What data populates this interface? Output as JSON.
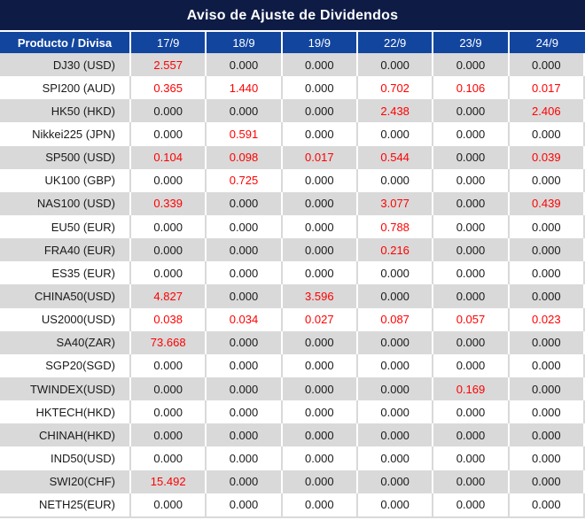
{
  "chart_data": {
    "type": "table",
    "title": "Aviso de Ajuste de Dividendos",
    "columns": [
      "Producto / Divisa",
      "17/9",
      "18/9",
      "19/9",
      "22/9",
      "23/9",
      "24/9"
    ],
    "highlight_rule": "non-zero adjustment values rendered in red",
    "rows": [
      {
        "product": "DJ30 (USD)",
        "values": [
          "2.557",
          "0.000",
          "0.000",
          "0.000",
          "0.000",
          "0.000"
        ]
      },
      {
        "product": "SPI200 (AUD)",
        "values": [
          "0.365",
          "1.440",
          "0.000",
          "0.702",
          "0.106",
          "0.017"
        ]
      },
      {
        "product": "HK50 (HKD)",
        "values": [
          "0.000",
          "0.000",
          "0.000",
          "2.438",
          "0.000",
          "2.406"
        ]
      },
      {
        "product": "Nikkei225 (JPN)",
        "values": [
          "0.000",
          "0.591",
          "0.000",
          "0.000",
          "0.000",
          "0.000"
        ]
      },
      {
        "product": "SP500 (USD)",
        "values": [
          "0.104",
          "0.098",
          "0.017",
          "0.544",
          "0.000",
          "0.039"
        ]
      },
      {
        "product": "UK100 (GBP)",
        "values": [
          "0.000",
          "0.725",
          "0.000",
          "0.000",
          "0.000",
          "0.000"
        ]
      },
      {
        "product": "NAS100 (USD)",
        "values": [
          "0.339",
          "0.000",
          "0.000",
          "3.077",
          "0.000",
          "0.439"
        ]
      },
      {
        "product": "EU50 (EUR)",
        "values": [
          "0.000",
          "0.000",
          "0.000",
          "0.788",
          "0.000",
          "0.000"
        ]
      },
      {
        "product": "FRA40 (EUR)",
        "values": [
          "0.000",
          "0.000",
          "0.000",
          "0.216",
          "0.000",
          "0.000"
        ]
      },
      {
        "product": "ES35 (EUR)",
        "values": [
          "0.000",
          "0.000",
          "0.000",
          "0.000",
          "0.000",
          "0.000"
        ]
      },
      {
        "product": "CHINA50(USD)",
        "values": [
          "4.827",
          "0.000",
          "3.596",
          "0.000",
          "0.000",
          "0.000"
        ]
      },
      {
        "product": "US2000(USD)",
        "values": [
          "0.038",
          "0.034",
          "0.027",
          "0.087",
          "0.057",
          "0.023"
        ]
      },
      {
        "product": "SA40(ZAR)",
        "values": [
          "73.668",
          "0.000",
          "0.000",
          "0.000",
          "0.000",
          "0.000"
        ]
      },
      {
        "product": "SGP20(SGD)",
        "values": [
          "0.000",
          "0.000",
          "0.000",
          "0.000",
          "0.000",
          "0.000"
        ]
      },
      {
        "product": "TWINDEX(USD)",
        "values": [
          "0.000",
          "0.000",
          "0.000",
          "0.000",
          "0.169",
          "0.000"
        ]
      },
      {
        "product": "HKTECH(HKD)",
        "values": [
          "0.000",
          "0.000",
          "0.000",
          "0.000",
          "0.000",
          "0.000"
        ]
      },
      {
        "product": "CHINAH(HKD)",
        "values": [
          "0.000",
          "0.000",
          "0.000",
          "0.000",
          "0.000",
          "0.000"
        ]
      },
      {
        "product": "IND50(USD)",
        "values": [
          "0.000",
          "0.000",
          "0.000",
          "0.000",
          "0.000",
          "0.000"
        ]
      },
      {
        "product": "SWI20(CHF)",
        "values": [
          "15.492",
          "0.000",
          "0.000",
          "0.000",
          "0.000",
          "0.000"
        ]
      },
      {
        "product": "NETH25(EUR)",
        "values": [
          "0.000",
          "0.000",
          "0.000",
          "0.000",
          "0.000",
          "0.000"
        ]
      }
    ],
    "colors": {
      "title_bg": "#0d1b45",
      "header_bg": "#12459e",
      "header_text": "#ffffff",
      "row_alt_bg": "#d9d9d9",
      "row_base_bg": "#ffffff",
      "value_text": "#1a1a1a",
      "value_highlight": "#ff0000"
    }
  }
}
